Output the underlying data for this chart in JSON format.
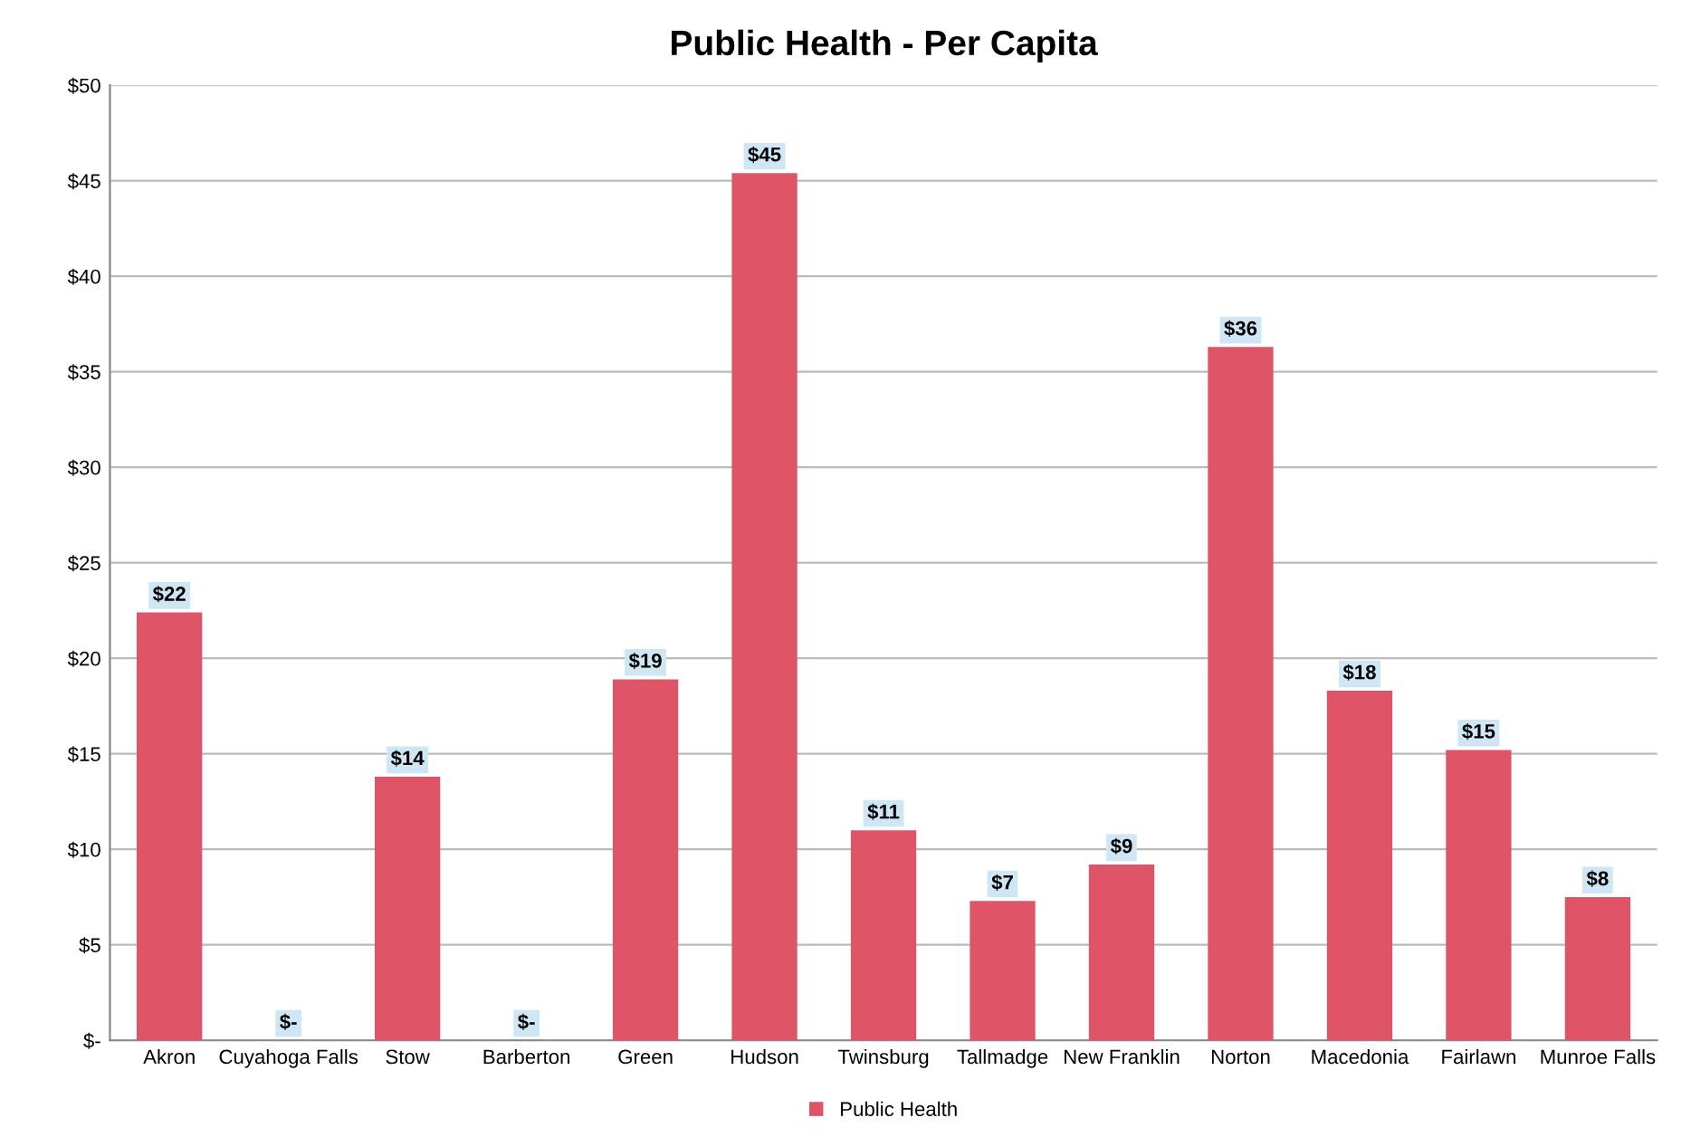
{
  "chart_data": {
    "type": "bar",
    "title": "Public Health - Per Capita",
    "categories": [
      "Akron",
      "Cuyahoga Falls",
      "Stow",
      "Barberton",
      "Green",
      "Hudson",
      "Twinsburg",
      "Tallmadge",
      "New Franklin",
      "Norton",
      "Macedonia",
      "Fairlawn",
      "Munroe Falls"
    ],
    "series": [
      {
        "name": "Public Health",
        "color": "#e05468",
        "values": [
          22.4,
          0,
          13.8,
          0,
          18.9,
          45.4,
          11.0,
          7.3,
          9.2,
          36.3,
          18.3,
          15.2,
          7.5
        ],
        "value_labels": [
          "$22",
          "$-",
          "$14",
          "$-",
          "$19",
          "$45",
          "$11",
          "$7",
          "$9",
          "$36",
          "$18",
          "$15",
          "$8"
        ]
      }
    ],
    "ylim": [
      0,
      50
    ],
    "yticks": [
      {
        "value": 0,
        "label": "$-"
      },
      {
        "value": 5,
        "label": "$5"
      },
      {
        "value": 10,
        "label": "$10"
      },
      {
        "value": 15,
        "label": "$15"
      },
      {
        "value": 20,
        "label": "$20"
      },
      {
        "value": 25,
        "label": "$25"
      },
      {
        "value": 30,
        "label": "$30"
      },
      {
        "value": 35,
        "label": "$35"
      },
      {
        "value": 40,
        "label": "$40"
      },
      {
        "value": 45,
        "label": "$45"
      },
      {
        "value": 50,
        "label": "$50"
      }
    ],
    "grid": "y",
    "legend": "bottom"
  }
}
